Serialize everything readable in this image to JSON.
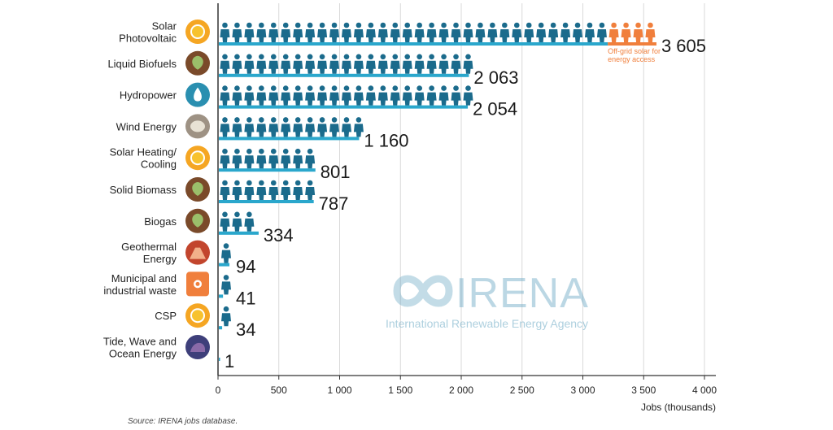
{
  "chart_data": {
    "type": "bar",
    "orientation": "horizontal",
    "categories": [
      "Solar Photovoltaic",
      "Liquid Biofuels",
      "Hydropower",
      "Wind Energy",
      "Solar Heating/ Cooling",
      "Solid Biomass",
      "Biogas",
      "Geothermal Energy",
      "Municipal and industrial waste",
      "CSP",
      "Tide, Wave and Ocean Energy"
    ],
    "category_lines": [
      [
        "Solar",
        "Photovoltaic"
      ],
      [
        "Liquid Biofuels"
      ],
      [
        "Hydropower"
      ],
      [
        "Wind Energy"
      ],
      [
        "Solar Heating/",
        "Cooling"
      ],
      [
        "Solid Biomass"
      ],
      [
        "Biogas"
      ],
      [
        "Geothermal",
        "Energy"
      ],
      [
        "Municipal and",
        "industrial waste"
      ],
      [
        "CSP"
      ],
      [
        "Tide, Wave and",
        "Ocean Energy"
      ]
    ],
    "icons": [
      "sun-icon",
      "leaf-icon",
      "water-drop-icon",
      "wind-icon",
      "sun-icon",
      "leaf-icon",
      "leaf-icon",
      "volcano-icon",
      "waste-bin-icon",
      "sun-icon",
      "wave-icon"
    ],
    "values": [
      3605,
      2063,
      2054,
      1160,
      801,
      787,
      334,
      94,
      41,
      34,
      1
    ],
    "value_labels": [
      "3 605",
      "2 063",
      "2 054",
      "1 160",
      "801",
      "787",
      "334",
      "94",
      "41",
      "34",
      "1"
    ],
    "segments": [
      {
        "category": "Solar Photovoltaic",
        "name": "Off-grid solar for energy access",
        "value": 400
      }
    ],
    "xlabel": "Jobs (thousands)",
    "xlim": [
      0,
      4000
    ],
    "xticks": [
      0,
      500,
      1000,
      1500,
      2000,
      2500,
      3000,
      3500,
      4000
    ],
    "xtick_labels": [
      "0",
      "500",
      "1 000",
      "1 500",
      "2 000",
      "2 500",
      "3 000",
      "3 500",
      "4 000"
    ],
    "grid": true,
    "source": "Source: IRENA jobs database."
  },
  "watermark": {
    "name": "IRENA",
    "subtitle": "International Renewable Energy Agency"
  },
  "colors": {
    "bar": "#1b6b8c",
    "bar_base": "#2aa7cc",
    "offgrid": "#f07f3c",
    "sun": "#f5a623",
    "leaf": "#7a4a2a",
    "water": "#2a8fb0",
    "stone": "#9e9284",
    "volcano": "#c2452d",
    "waste": "#f07f3c",
    "wave": "#3e3f7a"
  }
}
